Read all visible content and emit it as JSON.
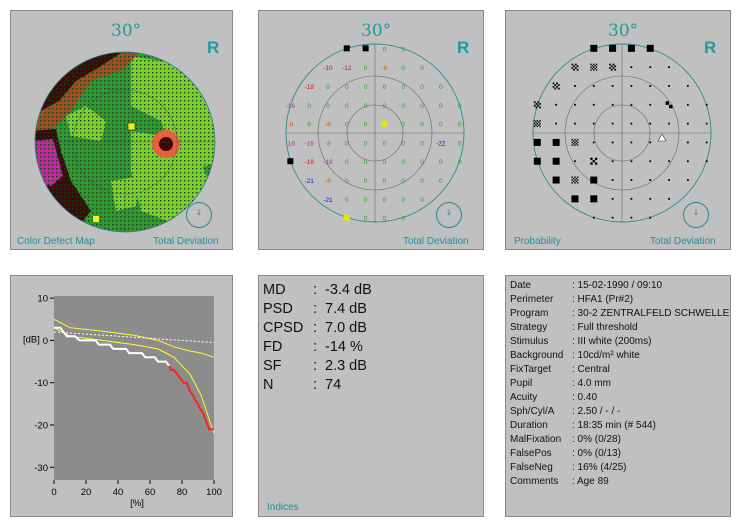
{
  "panels": {
    "color_map": {
      "title": "30°",
      "eye": "R",
      "caption_left": "Color Defect Map",
      "caption_right": "Total Deviation"
    },
    "numeric": {
      "title": "30°",
      "eye": "R",
      "caption_right": "Total Deviation"
    },
    "probability": {
      "title": "30°",
      "eye": "R",
      "caption_left": "Probability",
      "caption_right": "Total Deviation"
    }
  },
  "numeric_values": [
    {
      "v": "-12",
      "c": "#d01010",
      "p": [
        -4,
        3
      ]
    },
    {
      "v": "-10",
      "c": "#d01010",
      "p": [
        -3,
        3
      ]
    },
    {
      "v": "-12",
      "c": "#d01010",
      "p": [
        -2,
        3
      ]
    },
    {
      "v": "-6",
      "c": "#c86400",
      "p": [
        0,
        3
      ]
    },
    {
      "v": "-18",
      "c": "#d01010",
      "p": [
        -4,
        2
      ]
    },
    {
      "v": "-16",
      "c": "#c020c0",
      "p": [
        -5,
        1
      ]
    },
    {
      "v": "-8",
      "c": "#c86400",
      "p": [
        -5,
        0
      ]
    },
    {
      "v": "-6",
      "c": "#c86400",
      "p": [
        -3,
        0
      ]
    },
    {
      "v": "-16",
      "c": "#c020c0",
      "p": [
        -5,
        -1
      ]
    },
    {
      "v": "-16",
      "c": "#c020c0",
      "p": [
        -4,
        -1
      ]
    },
    {
      "v": "-8",
      "c": "#c86400",
      "p": [
        -3,
        -1
      ]
    },
    {
      "v": "-22",
      "c": "#1010d0",
      "p": [
        3,
        -1
      ]
    },
    {
      "v": "-18",
      "c": "#d01010",
      "p": [
        -4,
        -2
      ]
    },
    {
      "v": "-18",
      "c": "#c020c0",
      "p": [
        -3,
        -2
      ]
    },
    {
      "v": "-21",
      "c": "#1010d0",
      "p": [
        -4,
        -3
      ]
    },
    {
      "v": "-6",
      "c": "#c86400",
      "p": [
        -3,
        -3
      ]
    },
    {
      "v": "-21",
      "c": "#1010d0",
      "p": [
        -3,
        -4
      ]
    }
  ],
  "numeric_marks": [
    {
      "c": "#000000",
      "p": [
        -2,
        4
      ]
    },
    {
      "c": "#000000",
      "p": [
        -1,
        4
      ]
    },
    {
      "c": "#000000",
      "p": [
        -5,
        -2
      ]
    },
    {
      "c": "#e8e800",
      "p": [
        0,
        0
      ]
    },
    {
      "c": "#e8e800",
      "p": [
        -2,
        -5
      ]
    }
  ],
  "prob_blocks": [
    {
      "p": [
        -2,
        4
      ],
      "s": "b"
    },
    {
      "p": [
        -1,
        4
      ],
      "s": "b"
    },
    {
      "p": [
        0,
        4
      ],
      "s": "b"
    },
    {
      "p": [
        1,
        4
      ],
      "s": "b"
    },
    {
      "p": [
        -3,
        3
      ],
      "s": "s4"
    },
    {
      "p": [
        -1,
        3
      ],
      "s": "s4"
    },
    {
      "p": [
        -2,
        3
      ],
      "s": "s5"
    },
    {
      "p": [
        -4,
        2
      ],
      "s": "s4"
    },
    {
      "p": [
        -5,
        1
      ],
      "s": "s4"
    },
    {
      "p": [
        -5,
        0
      ],
      "s": "s5"
    },
    {
      "p": [
        -5,
        -1
      ],
      "s": "b"
    },
    {
      "p": [
        -4,
        -1
      ],
      "s": "b"
    },
    {
      "p": [
        -3,
        -1
      ],
      "s": "s5"
    },
    {
      "p": [
        -5,
        -2
      ],
      "s": "b"
    },
    {
      "p": [
        -4,
        -2
      ],
      "s": "b"
    },
    {
      "p": [
        -2,
        -2
      ],
      "s": "s3"
    },
    {
      "p": [
        -4,
        -3
      ],
      "s": "b"
    },
    {
      "p": [
        -3,
        -3
      ],
      "s": "s5"
    },
    {
      "p": [
        -2,
        -3
      ],
      "s": "b"
    },
    {
      "p": [
        -3,
        -4
      ],
      "s": "b"
    },
    {
      "p": [
        -2,
        -4
      ],
      "s": "b"
    },
    {
      "p": [
        2,
        1
      ],
      "s": "s2"
    }
  ],
  "chart_data": {
    "type": "line",
    "xlabel": "[%]",
    "ylabel": "[dB]",
    "x_ticks": [
      "0",
      "20",
      "40",
      "60",
      "80",
      "100"
    ],
    "y_ticks": [
      "10",
      "0",
      "-10",
      "-20",
      "-30"
    ],
    "xlim": [
      0,
      100
    ],
    "ylim": [
      -33,
      10.5
    ],
    "series": [
      {
        "color": "#ffffff",
        "x": [
          0,
          4,
          8,
          13,
          16,
          26,
          28,
          35,
          37,
          45,
          47,
          55,
          57,
          63,
          65,
          70,
          72
        ],
        "y": [
          3,
          3,
          1,
          1,
          0,
          0,
          -1,
          -1,
          -2,
          -2,
          -3,
          -3,
          -4,
          -4,
          -5,
          -5,
          -6
        ]
      },
      {
        "color": "#ff2020",
        "x": [
          72,
          73,
          75,
          77,
          79,
          81,
          83,
          85,
          87,
          88,
          90,
          91,
          93,
          95,
          97,
          100
        ],
        "y": [
          -6,
          -7,
          -7,
          -8,
          -9,
          -10,
          -10,
          -12,
          -13,
          -14,
          -15,
          -16,
          -17,
          -19,
          -21,
          -21
        ]
      },
      {
        "color": "#ffff30",
        "x": [
          0,
          10,
          30,
          50,
          65,
          75,
          85,
          92,
          100
        ],
        "y": [
          5,
          3,
          2.2,
          1.2,
          0,
          -1.5,
          -2.5,
          -3,
          -4
        ]
      },
      {
        "color": "#ffff30",
        "x": [
          0,
          10,
          30,
          50,
          65,
          75,
          85,
          92,
          100
        ],
        "y": [
          3,
          1,
          0,
          -1,
          -2,
          -4,
          -8,
          -13,
          -22
        ]
      },
      {
        "color": "#ffffff",
        "x": [
          0,
          20,
          40,
          60,
          80,
          100
        ],
        "y": [
          2,
          1.5,
          1,
          0.5,
          0,
          -0.5
        ]
      }
    ]
  },
  "indices": {
    "caption": "Indices",
    "rows": [
      {
        "label": "MD",
        "value": "-3.4 dB"
      },
      {
        "label": "PSD",
        "value": "7.4 dB"
      },
      {
        "label": "CPSD",
        "value": "7.0 dB"
      },
      {
        "label": "FD",
        "value": "-14 %"
      },
      {
        "label": "SF",
        "value": "2.3 dB"
      },
      {
        "label": "N",
        "value": "74"
      }
    ]
  },
  "info": {
    "rows": [
      {
        "label": "Date",
        "value": ": 15-02-1990 / 09:10"
      },
      {
        "label": "Perimeter",
        "value": ": HFA1  (Pr#2)"
      },
      {
        "label": "Program",
        "value": ": 30-2 ZENTRALFELD SCHWELLE"
      },
      {
        "label": "Strategy",
        "value": ": Full threshold"
      },
      {
        "label": "Stimulus",
        "value": ": III  white  (200ms)"
      },
      {
        "label": "Background",
        "value": ": 10cd/m²  white"
      },
      {
        "label": "FixTarget",
        "value": ": Central"
      },
      {
        "label": "Pupil",
        "value": ":  4.0 mm"
      },
      {
        "label": "Acuity",
        "value": ": 0.40"
      },
      {
        "label": "Sph/Cyl/A",
        "value": ": 2.50 / - / -"
      },
      {
        "label": "Duration",
        "value": ": 18:35 min  (# 544)"
      },
      {
        "label": "MalFixation",
        "value": ": 0% (0/28)"
      },
      {
        "label": "FalsePos",
        "value": ": 0% (0/13)"
      },
      {
        "label": "FalseNeg",
        "value": ": 16% (4/25)"
      },
      {
        "label": "Comments",
        "value": ": Age  89"
      }
    ]
  }
}
